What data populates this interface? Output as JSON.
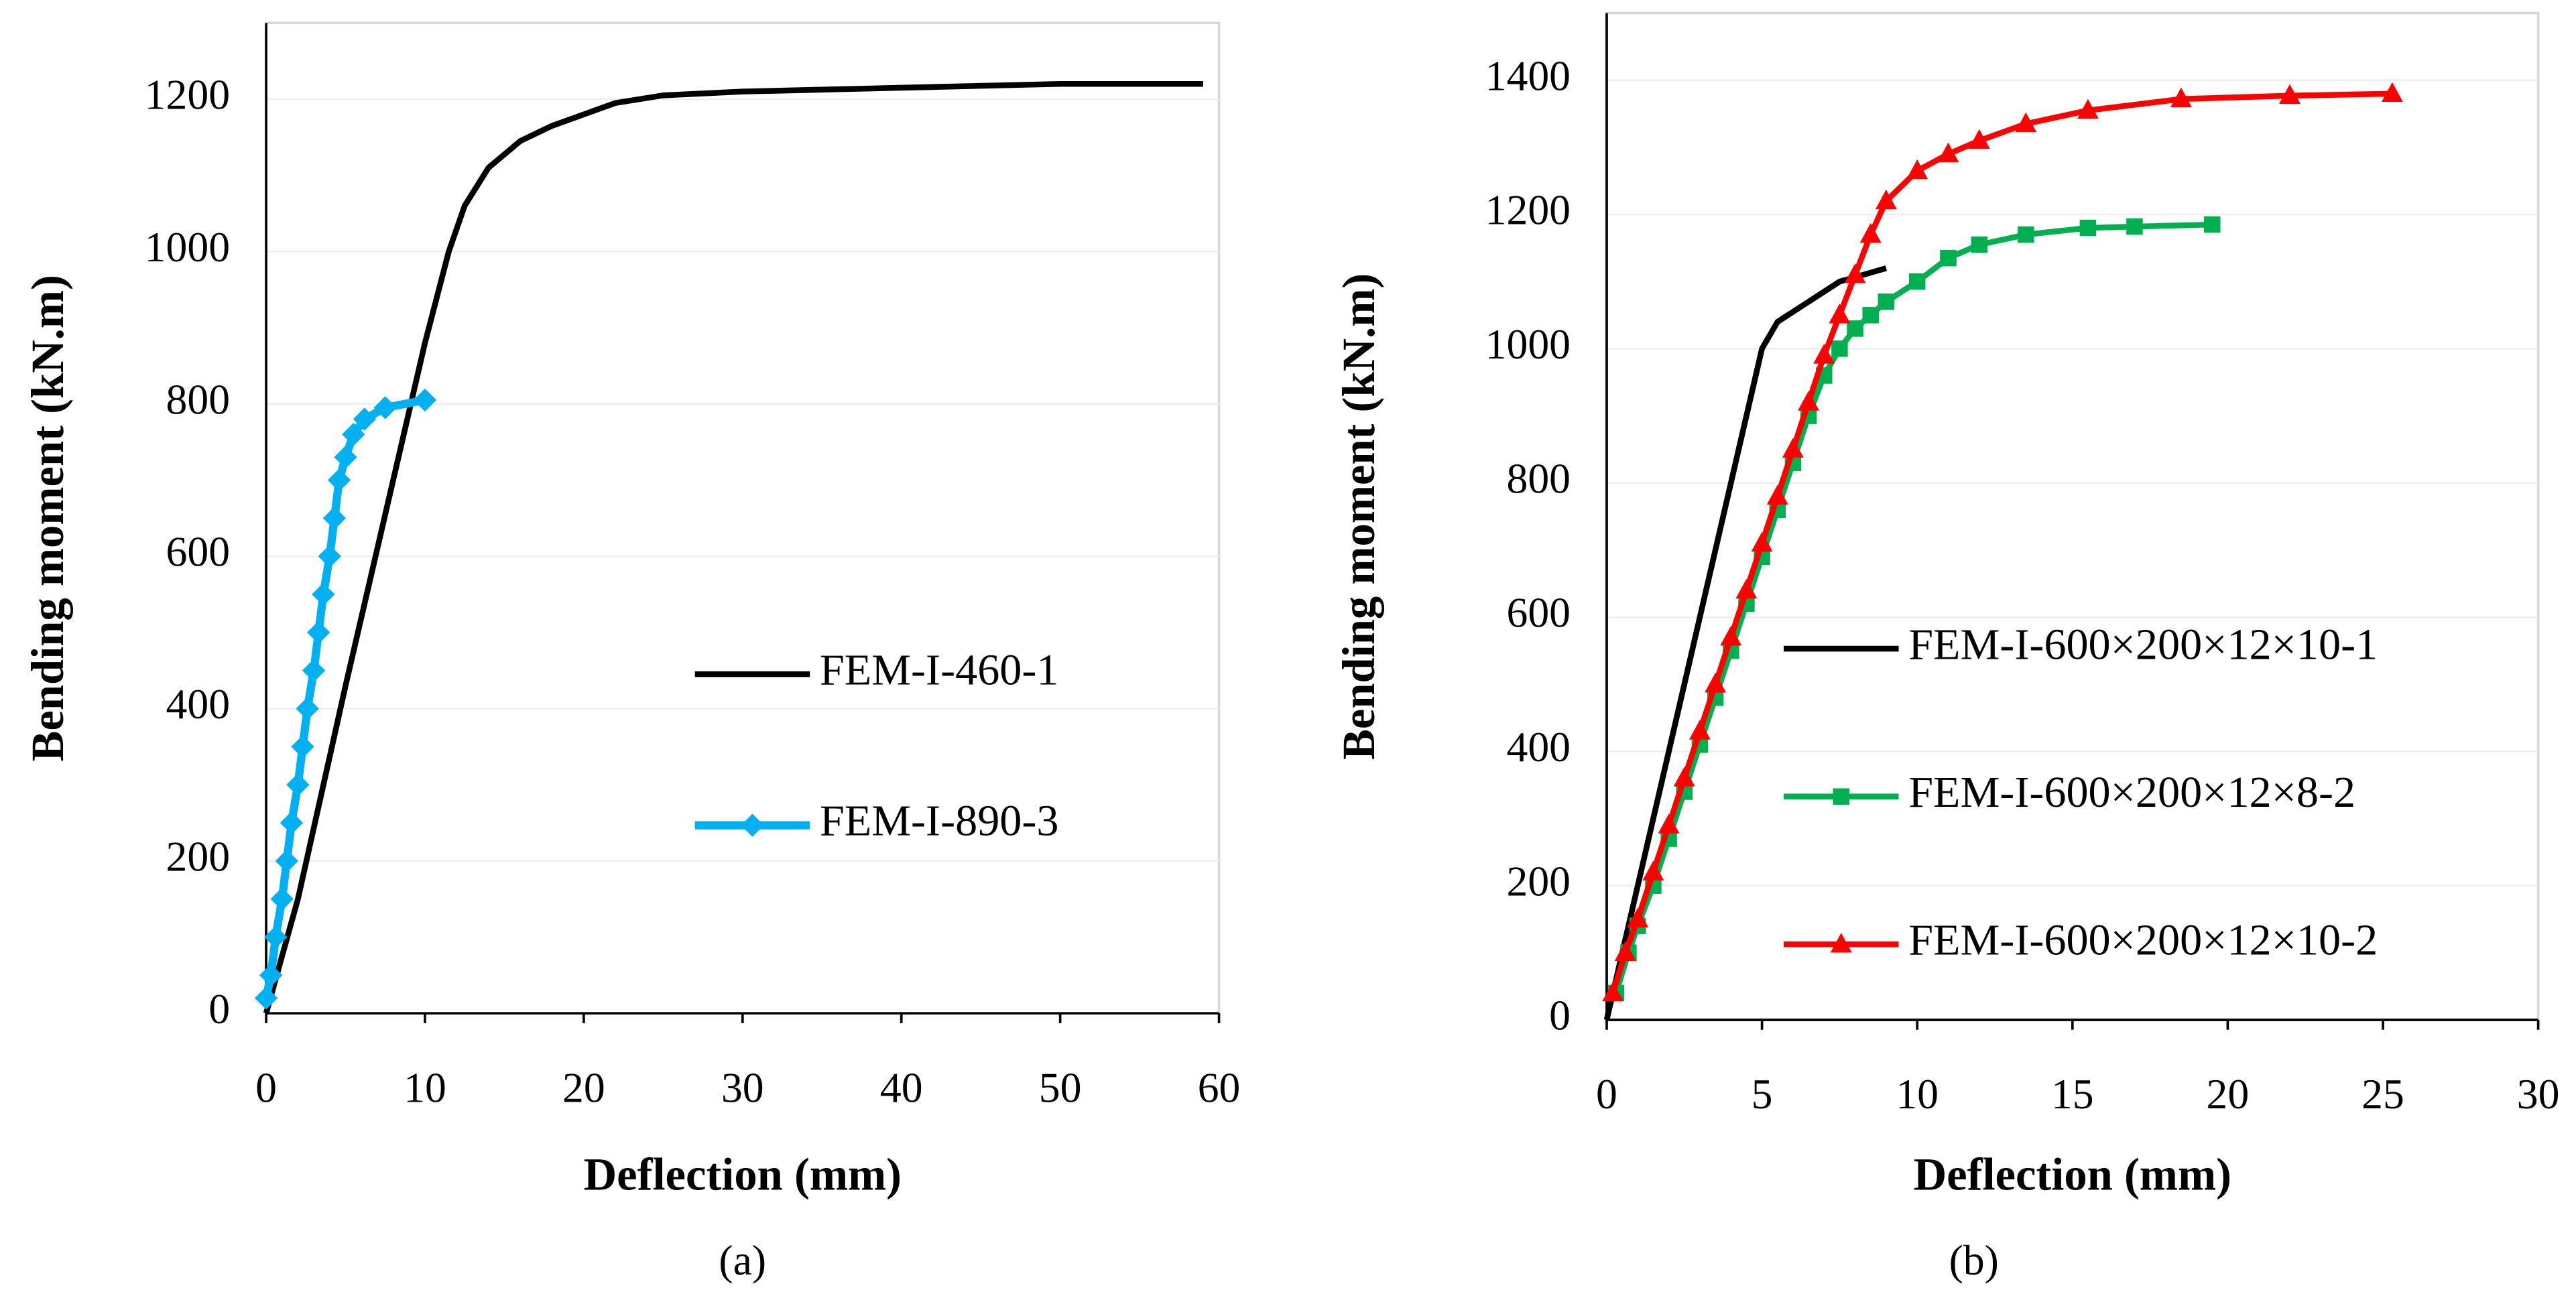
{
  "chart_data": [
    {
      "type": "line",
      "label": "(a)",
      "x_label": "Deflection (mm)",
      "y_label": "Bending moment (kN.m)",
      "xlim": [
        0,
        60
      ],
      "xticks": [
        0,
        10,
        20,
        30,
        40,
        50,
        60
      ],
      "ylim": [
        0,
        1300
      ],
      "yticks": [
        0,
        200,
        400,
        600,
        800,
        1000,
        1200
      ],
      "grid": true,
      "legend": "right",
      "series": [
        {
          "name": "FEM-I-460-1",
          "color": "#000000",
          "marker": "none",
          "x": [
            0,
            2,
            5,
            8,
            10,
            11.5,
            12.5,
            14,
            16,
            18,
            20,
            22,
            25,
            30,
            40,
            50,
            59
          ],
          "values": [
            0,
            150,
            430,
            700,
            880,
            1000,
            1060,
            1110,
            1145,
            1165,
            1180,
            1195,
            1205,
            1210,
            1215,
            1220,
            1220
          ]
        },
        {
          "name": "FEM-I-890-3",
          "color": "#00b0f0",
          "marker": "diamond",
          "x": [
            0,
            0.3,
            0.6,
            1,
            1.3,
            1.6,
            2,
            2.3,
            2.6,
            3,
            3.3,
            3.6,
            4,
            4.3,
            4.6,
            5,
            5.5,
            6.2,
            7.5,
            10
          ],
          "values": [
            20,
            50,
            100,
            150,
            200,
            250,
            300,
            350,
            400,
            450,
            500,
            550,
            600,
            650,
            700,
            730,
            760,
            780,
            795,
            805
          ]
        }
      ]
    },
    {
      "type": "line",
      "label": "(b)",
      "x_label": "Deflection (mm)",
      "y_label": "Bending moment (kN.m)",
      "xlim": [
        0,
        30
      ],
      "xticks": [
        0,
        5,
        10,
        15,
        20,
        25,
        30
      ],
      "ylim": [
        0,
        1500
      ],
      "yticks": [
        0,
        200,
        400,
        600,
        800,
        1000,
        1200,
        1400
      ],
      "grid": true,
      "legend": "lower center",
      "series": [
        {
          "name": "FEM-I-600×200×12×10-1",
          "color": "#000000",
          "marker": "none",
          "x": [
            0,
            1,
            2,
            3,
            4,
            4.5,
            5,
            5.5,
            6.5,
            7.5,
            9
          ],
          "values": [
            0,
            200,
            400,
            600,
            800,
            900,
            1000,
            1040,
            1070,
            1100,
            1120
          ]
        },
        {
          "name": "FEM-I-600×200×12×8-2",
          "color": "#00b050",
          "marker": "square",
          "x": [
            0.3,
            0.7,
            1,
            1.5,
            2,
            2.5,
            3,
            3.5,
            4,
            4.5,
            5,
            5.5,
            6,
            6.5,
            7,
            7.5,
            8,
            8.5,
            9,
            10,
            11,
            12,
            13.5,
            15.5,
            17,
            19.5
          ],
          "values": [
            40,
            100,
            140,
            200,
            270,
            340,
            410,
            480,
            550,
            620,
            690,
            760,
            830,
            900,
            960,
            1000,
            1030,
            1050,
            1070,
            1100,
            1135,
            1155,
            1170,
            1180,
            1182,
            1185
          ]
        },
        {
          "name": "FEM-I-600×200×12×10-2",
          "color": "#ff0000",
          "marker": "triangle",
          "x": [
            0.2,
            0.6,
            1,
            1.5,
            2,
            2.5,
            3,
            3.5,
            4,
            4.5,
            5,
            5.5,
            6,
            6.5,
            7,
            7.5,
            8,
            8.5,
            9,
            10,
            11,
            12,
            13.5,
            15.5,
            18.5,
            22,
            25.3
          ],
          "values": [
            40,
            100,
            150,
            220,
            290,
            360,
            430,
            500,
            570,
            640,
            710,
            780,
            850,
            920,
            990,
            1050,
            1110,
            1170,
            1220,
            1265,
            1290,
            1310,
            1335,
            1355,
            1372,
            1377,
            1380
          ]
        }
      ]
    }
  ]
}
